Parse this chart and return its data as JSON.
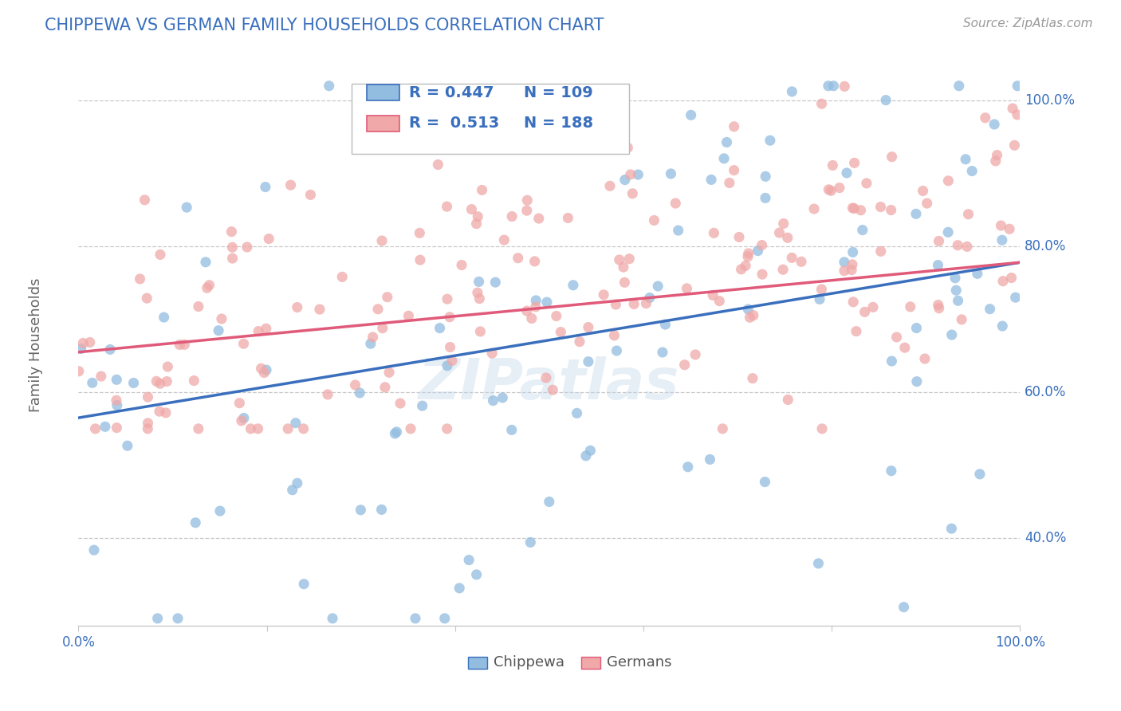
{
  "title": "CHIPPEWA VS GERMAN FAMILY HOUSEHOLDS CORRELATION CHART",
  "source": "Source: ZipAtlas.com",
  "ylabel": "Family Households",
  "xlim": [
    0.0,
    1.0
  ],
  "ylim": [
    0.28,
    1.05
  ],
  "ytick_positions": [
    0.4,
    0.6,
    0.8,
    1.0
  ],
  "ytick_labels": [
    "40.0%",
    "60.0%",
    "80.0%",
    "100.0%"
  ],
  "legend_R": [
    0.447,
    0.513
  ],
  "legend_N": [
    109,
    188
  ],
  "blue_color": "#92bce0",
  "pink_color": "#f0a8a8",
  "blue_line_color": "#3a6fbd",
  "pink_line_color": "#e05a7a",
  "legend_text_color": "#3a6fbd",
  "title_color": "#3a6fbd",
  "grid_color": "#c8c8c8",
  "watermark": "ZIPatlas",
  "chip_trend_start": 0.565,
  "chip_trend_end": 0.778,
  "germ_trend_start": 0.655,
  "germ_trend_end": 0.778,
  "bottom_legend_labels": [
    "Chippewa",
    "Germans"
  ]
}
